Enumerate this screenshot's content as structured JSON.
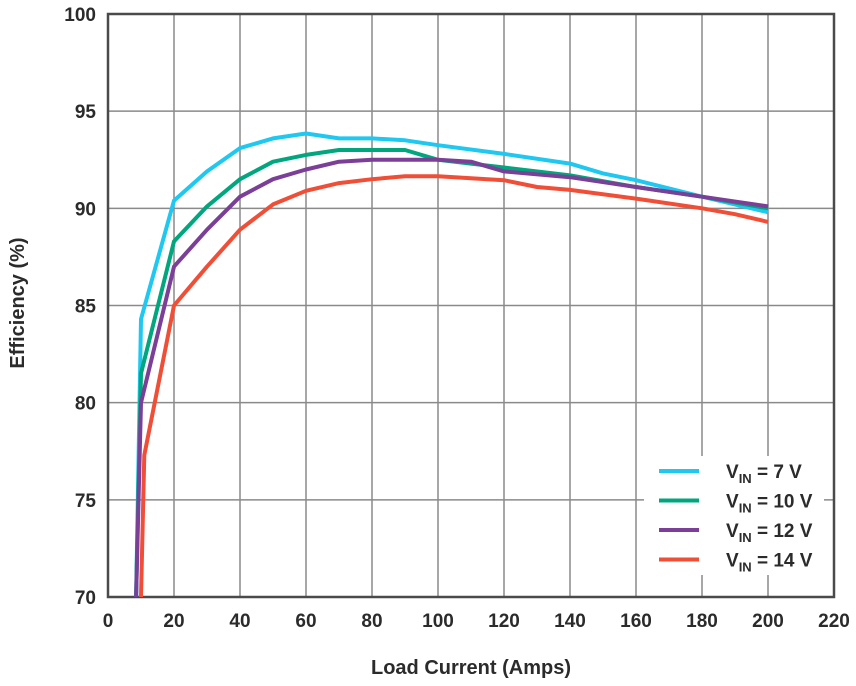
{
  "chart_data": {
    "type": "line",
    "title": "",
    "xlabel": "Load Current (Amps)",
    "ylabel": "Efficiency (%)",
    "xlim": [
      0,
      220
    ],
    "ylim": [
      70,
      100
    ],
    "xticks": [
      "0",
      "20",
      "40",
      "60",
      "80",
      "100",
      "120",
      "140",
      "160",
      "180",
      "200",
      "220"
    ],
    "yticks": [
      "70",
      "75",
      "80",
      "85",
      "90",
      "95",
      "100"
    ],
    "grid": true,
    "legend_position": "bottom-right",
    "series": [
      {
        "name": "VIN = 7 V",
        "legend": {
          "main": "V",
          "sub": "IN",
          "rest": " = 7 V"
        },
        "color": "#1ec8f0",
        "points": [
          [
            8.5,
            70
          ],
          [
            10,
            84.3
          ],
          [
            20,
            90.4
          ],
          [
            30,
            91.9
          ],
          [
            40,
            93.1
          ],
          [
            50,
            93.6
          ],
          [
            60,
            93.85
          ],
          [
            70,
            93.6
          ],
          [
            80,
            93.6
          ],
          [
            90,
            93.5
          ],
          [
            100,
            93.25
          ],
          [
            120,
            92.8
          ],
          [
            140,
            92.3
          ],
          [
            150,
            91.8
          ],
          [
            160,
            91.45
          ],
          [
            180,
            90.6
          ],
          [
            200,
            89.8
          ]
        ]
      },
      {
        "name": "VIN = 10 V",
        "legend": {
          "main": "V",
          "sub": "IN",
          "rest": " = 10 V"
        },
        "color": "#00a67e",
        "points": [
          [
            8.5,
            70
          ],
          [
            10,
            81.5
          ],
          [
            20,
            88.3
          ],
          [
            30,
            90.1
          ],
          [
            40,
            91.5
          ],
          [
            50,
            92.4
          ],
          [
            60,
            92.75
          ],
          [
            70,
            93
          ],
          [
            80,
            93
          ],
          [
            90,
            93
          ],
          [
            100,
            92.5
          ],
          [
            120,
            92.1
          ],
          [
            140,
            91.7
          ],
          [
            160,
            91.1
          ],
          [
            180,
            90.6
          ],
          [
            200,
            90
          ]
        ]
      },
      {
        "name": "VIN = 12 V",
        "legend": {
          "main": "V",
          "sub": "IN",
          "rest": " = 12 V"
        },
        "color": "#7b3f98",
        "points": [
          [
            8.5,
            70
          ],
          [
            10,
            80
          ],
          [
            20,
            87
          ],
          [
            30,
            88.9
          ],
          [
            40,
            90.6
          ],
          [
            50,
            91.5
          ],
          [
            60,
            92
          ],
          [
            70,
            92.4
          ],
          [
            80,
            92.5
          ],
          [
            90,
            92.5
          ],
          [
            100,
            92.5
          ],
          [
            110,
            92.4
          ],
          [
            120,
            91.9
          ],
          [
            140,
            91.6
          ],
          [
            160,
            91.1
          ],
          [
            180,
            90.6
          ],
          [
            200,
            90.1
          ]
        ]
      },
      {
        "name": "VIN = 14 V",
        "legend": {
          "main": "V",
          "sub": "IN",
          "rest": " = 14 V"
        },
        "color": "#f04e37",
        "points": [
          [
            10,
            70
          ],
          [
            11,
            77.3
          ],
          [
            20,
            85
          ],
          [
            30,
            87
          ],
          [
            40,
            88.9
          ],
          [
            50,
            90.2
          ],
          [
            60,
            90.9
          ],
          [
            70,
            91.3
          ],
          [
            80,
            91.5
          ],
          [
            90,
            91.65
          ],
          [
            100,
            91.65
          ],
          [
            120,
            91.45
          ],
          [
            130,
            91.1
          ],
          [
            140,
            90.95
          ],
          [
            160,
            90.5
          ],
          [
            180,
            90
          ],
          [
            190,
            89.7
          ],
          [
            200,
            89.3
          ]
        ]
      }
    ]
  }
}
